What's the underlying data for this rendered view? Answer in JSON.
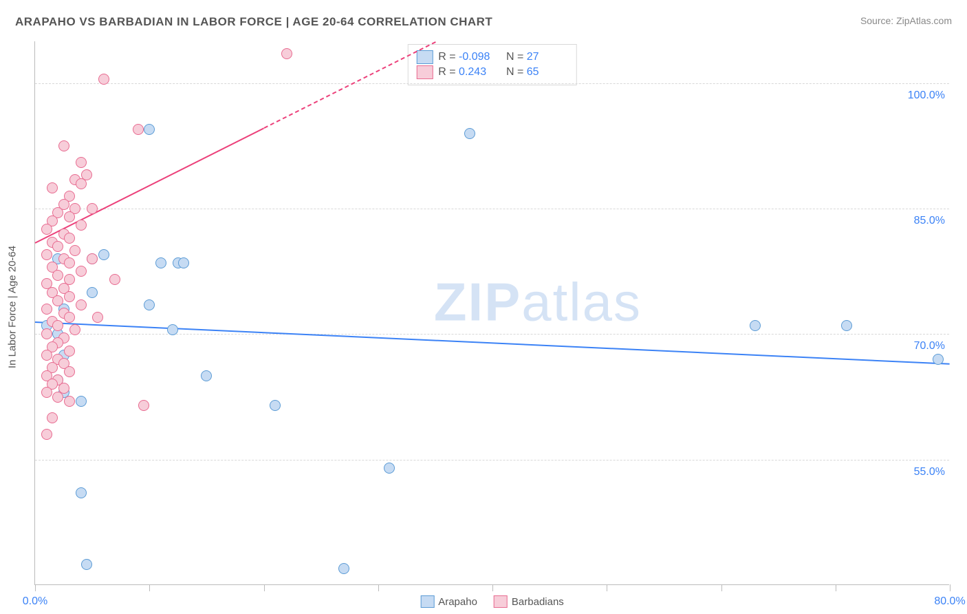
{
  "title": "ARAPAHO VS BARBADIAN IN LABOR FORCE | AGE 20-64 CORRELATION CHART",
  "source_label": "Source: ZipAtlas.com",
  "y_axis_label": "In Labor Force | Age 20-64",
  "watermark": {
    "a": "ZIP",
    "b": "atlas"
  },
  "chart": {
    "type": "scatter",
    "background_color": "#ffffff",
    "grid_color": "#d8d8d8",
    "axis_color": "#bbbbbb",
    "font_family": "Arial",
    "title_fontsize": 17,
    "label_fontsize": 15,
    "tick_fontsize": 16,
    "point_radius": 8,
    "xlim": [
      0,
      80
    ],
    "ylim": [
      40,
      105
    ],
    "x_ticks": [
      0,
      10,
      20,
      30,
      40,
      50,
      60,
      70,
      80
    ],
    "x_tick_labels": {
      "0": "0.0%",
      "80": "80.0%"
    },
    "y_gridlines": [
      55,
      70,
      85,
      100
    ],
    "y_tick_labels": {
      "55": "55.0%",
      "70": "70.0%",
      "85": "85.0%",
      "100": "100.0%"
    },
    "series": [
      {
        "name": "Arapaho",
        "color_fill": "#c6dbf3",
        "color_stroke": "#5b9bd5",
        "trend_color": "#3b82f6",
        "trend_width": 2,
        "trend": {
          "x1": 0,
          "y1": 71.5,
          "x2": 80,
          "y2": 66.5,
          "dashed_from_x": null
        },
        "R": "-0.098",
        "N": "27",
        "points": [
          [
            10,
            94.5
          ],
          [
            38,
            94
          ],
          [
            6,
            79.5
          ],
          [
            11,
            78.5
          ],
          [
            12.5,
            78.5
          ],
          [
            13,
            78.5
          ],
          [
            2,
            79
          ],
          [
            2,
            70
          ],
          [
            2.5,
            67.5
          ],
          [
            2,
            64.5
          ],
          [
            2.5,
            63
          ],
          [
            4,
            62
          ],
          [
            5,
            79
          ],
          [
            10,
            73.5
          ],
          [
            12,
            70.5
          ],
          [
            15,
            65
          ],
          [
            21,
            61.5
          ],
          [
            31,
            54
          ],
          [
            27,
            42
          ],
          [
            63,
            71
          ],
          [
            71,
            71
          ],
          [
            79,
            67
          ],
          [
            4.5,
            42.5
          ],
          [
            4,
            51
          ],
          [
            2.5,
            73
          ],
          [
            5,
            75
          ],
          [
            1,
            71
          ]
        ]
      },
      {
        "name": "Barbadians",
        "color_fill": "#f7cdd9",
        "color_stroke": "#e86b90",
        "trend_color": "#ec407a",
        "trend_width": 2,
        "trend": {
          "x1": 0,
          "y1": 81,
          "x2": 35,
          "y2": 105,
          "dashed_from_x": 20
        },
        "R": "0.243",
        "N": "65",
        "points": [
          [
            6,
            100.5
          ],
          [
            22,
            103.5
          ],
          [
            9,
            94.5
          ],
          [
            2.5,
            92.5
          ],
          [
            4,
            90.5
          ],
          [
            4.5,
            89
          ],
          [
            3.5,
            88.5
          ],
          [
            4,
            88
          ],
          [
            1.5,
            87.5
          ],
          [
            3,
            86.5
          ],
          [
            2.5,
            85.5
          ],
          [
            3.5,
            85
          ],
          [
            2,
            84.5
          ],
          [
            3,
            84
          ],
          [
            1.5,
            83.5
          ],
          [
            4,
            83
          ],
          [
            1,
            82.5
          ],
          [
            2.5,
            82
          ],
          [
            3,
            81.5
          ],
          [
            1.5,
            81
          ],
          [
            2,
            80.5
          ],
          [
            3.5,
            80
          ],
          [
            1,
            79.5
          ],
          [
            2.5,
            79
          ],
          [
            3,
            78.5
          ],
          [
            1.5,
            78
          ],
          [
            4,
            77.5
          ],
          [
            2,
            77
          ],
          [
            3,
            76.5
          ],
          [
            1,
            76
          ],
          [
            2.5,
            75.5
          ],
          [
            1.5,
            75
          ],
          [
            3,
            74.5
          ],
          [
            2,
            74
          ],
          [
            4,
            73.5
          ],
          [
            1,
            73
          ],
          [
            2.5,
            72.5
          ],
          [
            3,
            72
          ],
          [
            1.5,
            71.5
          ],
          [
            2,
            71
          ],
          [
            3.5,
            70.5
          ],
          [
            1,
            70
          ],
          [
            2.5,
            69.5
          ],
          [
            2,
            69
          ],
          [
            1.5,
            68.5
          ],
          [
            3,
            68
          ],
          [
            1,
            67.5
          ],
          [
            2,
            67
          ],
          [
            2.5,
            66.5
          ],
          [
            1.5,
            66
          ],
          [
            3,
            65.5
          ],
          [
            1,
            65
          ],
          [
            2,
            64.5
          ],
          [
            1.5,
            64
          ],
          [
            2.5,
            63.5
          ],
          [
            1,
            63
          ],
          [
            2,
            62.5
          ],
          [
            3,
            62
          ],
          [
            1.5,
            60
          ],
          [
            1,
            58
          ],
          [
            5,
            79
          ],
          [
            7,
            76.5
          ],
          [
            5.5,
            72
          ],
          [
            9.5,
            61.5
          ],
          [
            5,
            85
          ]
        ]
      }
    ]
  },
  "legend": {
    "stat_rows": [
      {
        "swatch_fill": "#c6dbf3",
        "swatch_stroke": "#5b9bd5",
        "r_label": "R =",
        "r_val": "-0.098",
        "n_label": "N =",
        "n_val": "27"
      },
      {
        "swatch_fill": "#f7cdd9",
        "swatch_stroke": "#e86b90",
        "r_label": "R =",
        "r_val": "0.243",
        "n_label": "N =",
        "n_val": "65"
      }
    ],
    "bottom": [
      {
        "swatch_fill": "#c6dbf3",
        "swatch_stroke": "#5b9bd5",
        "label": "Arapaho"
      },
      {
        "swatch_fill": "#f7cdd9",
        "swatch_stroke": "#e86b90",
        "label": "Barbadians"
      }
    ]
  }
}
